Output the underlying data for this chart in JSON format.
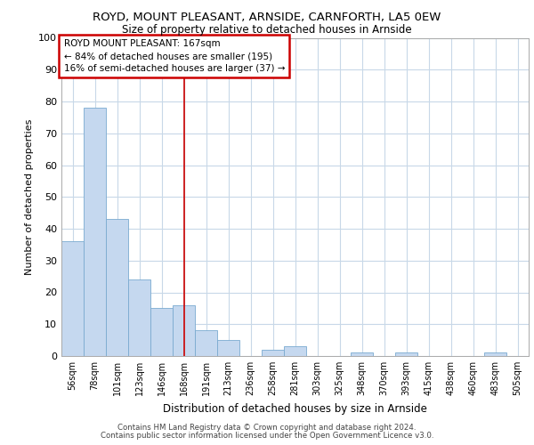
{
  "title": "ROYD, MOUNT PLEASANT, ARNSIDE, CARNFORTH, LA5 0EW",
  "subtitle": "Size of property relative to detached houses in Arnside",
  "xlabel": "Distribution of detached houses by size in Arnside",
  "ylabel": "Number of detached properties",
  "bar_color": "#c5d8ef",
  "bar_edge_color": "#7aaad0",
  "categories": [
    "56sqm",
    "78sqm",
    "101sqm",
    "123sqm",
    "146sqm",
    "168sqm",
    "191sqm",
    "213sqm",
    "236sqm",
    "258sqm",
    "281sqm",
    "303sqm",
    "325sqm",
    "348sqm",
    "370sqm",
    "393sqm",
    "415sqm",
    "438sqm",
    "460sqm",
    "483sqm",
    "505sqm"
  ],
  "values": [
    36,
    78,
    43,
    24,
    15,
    16,
    8,
    5,
    0,
    2,
    3,
    0,
    0,
    1,
    0,
    1,
    0,
    0,
    0,
    1,
    0
  ],
  "ylim": [
    0,
    100
  ],
  "yticks": [
    0,
    10,
    20,
    30,
    40,
    50,
    60,
    70,
    80,
    90,
    100
  ],
  "property_label": "ROYD MOUNT PLEASANT: 167sqm",
  "annotation_line1": "← 84% of detached houses are smaller (195)",
  "annotation_line2": "16% of semi-detached houses are larger (37) →",
  "annotation_box_color": "#ffffff",
  "annotation_box_edge": "#cc0000",
  "vline_color": "#cc0000",
  "vline_index": 5,
  "grid_color": "#c8d8e8",
  "background_color": "#ffffff",
  "footer_line1": "Contains HM Land Registry data © Crown copyright and database right 2024.",
  "footer_line2": "Contains public sector information licensed under the Open Government Licence v3.0."
}
